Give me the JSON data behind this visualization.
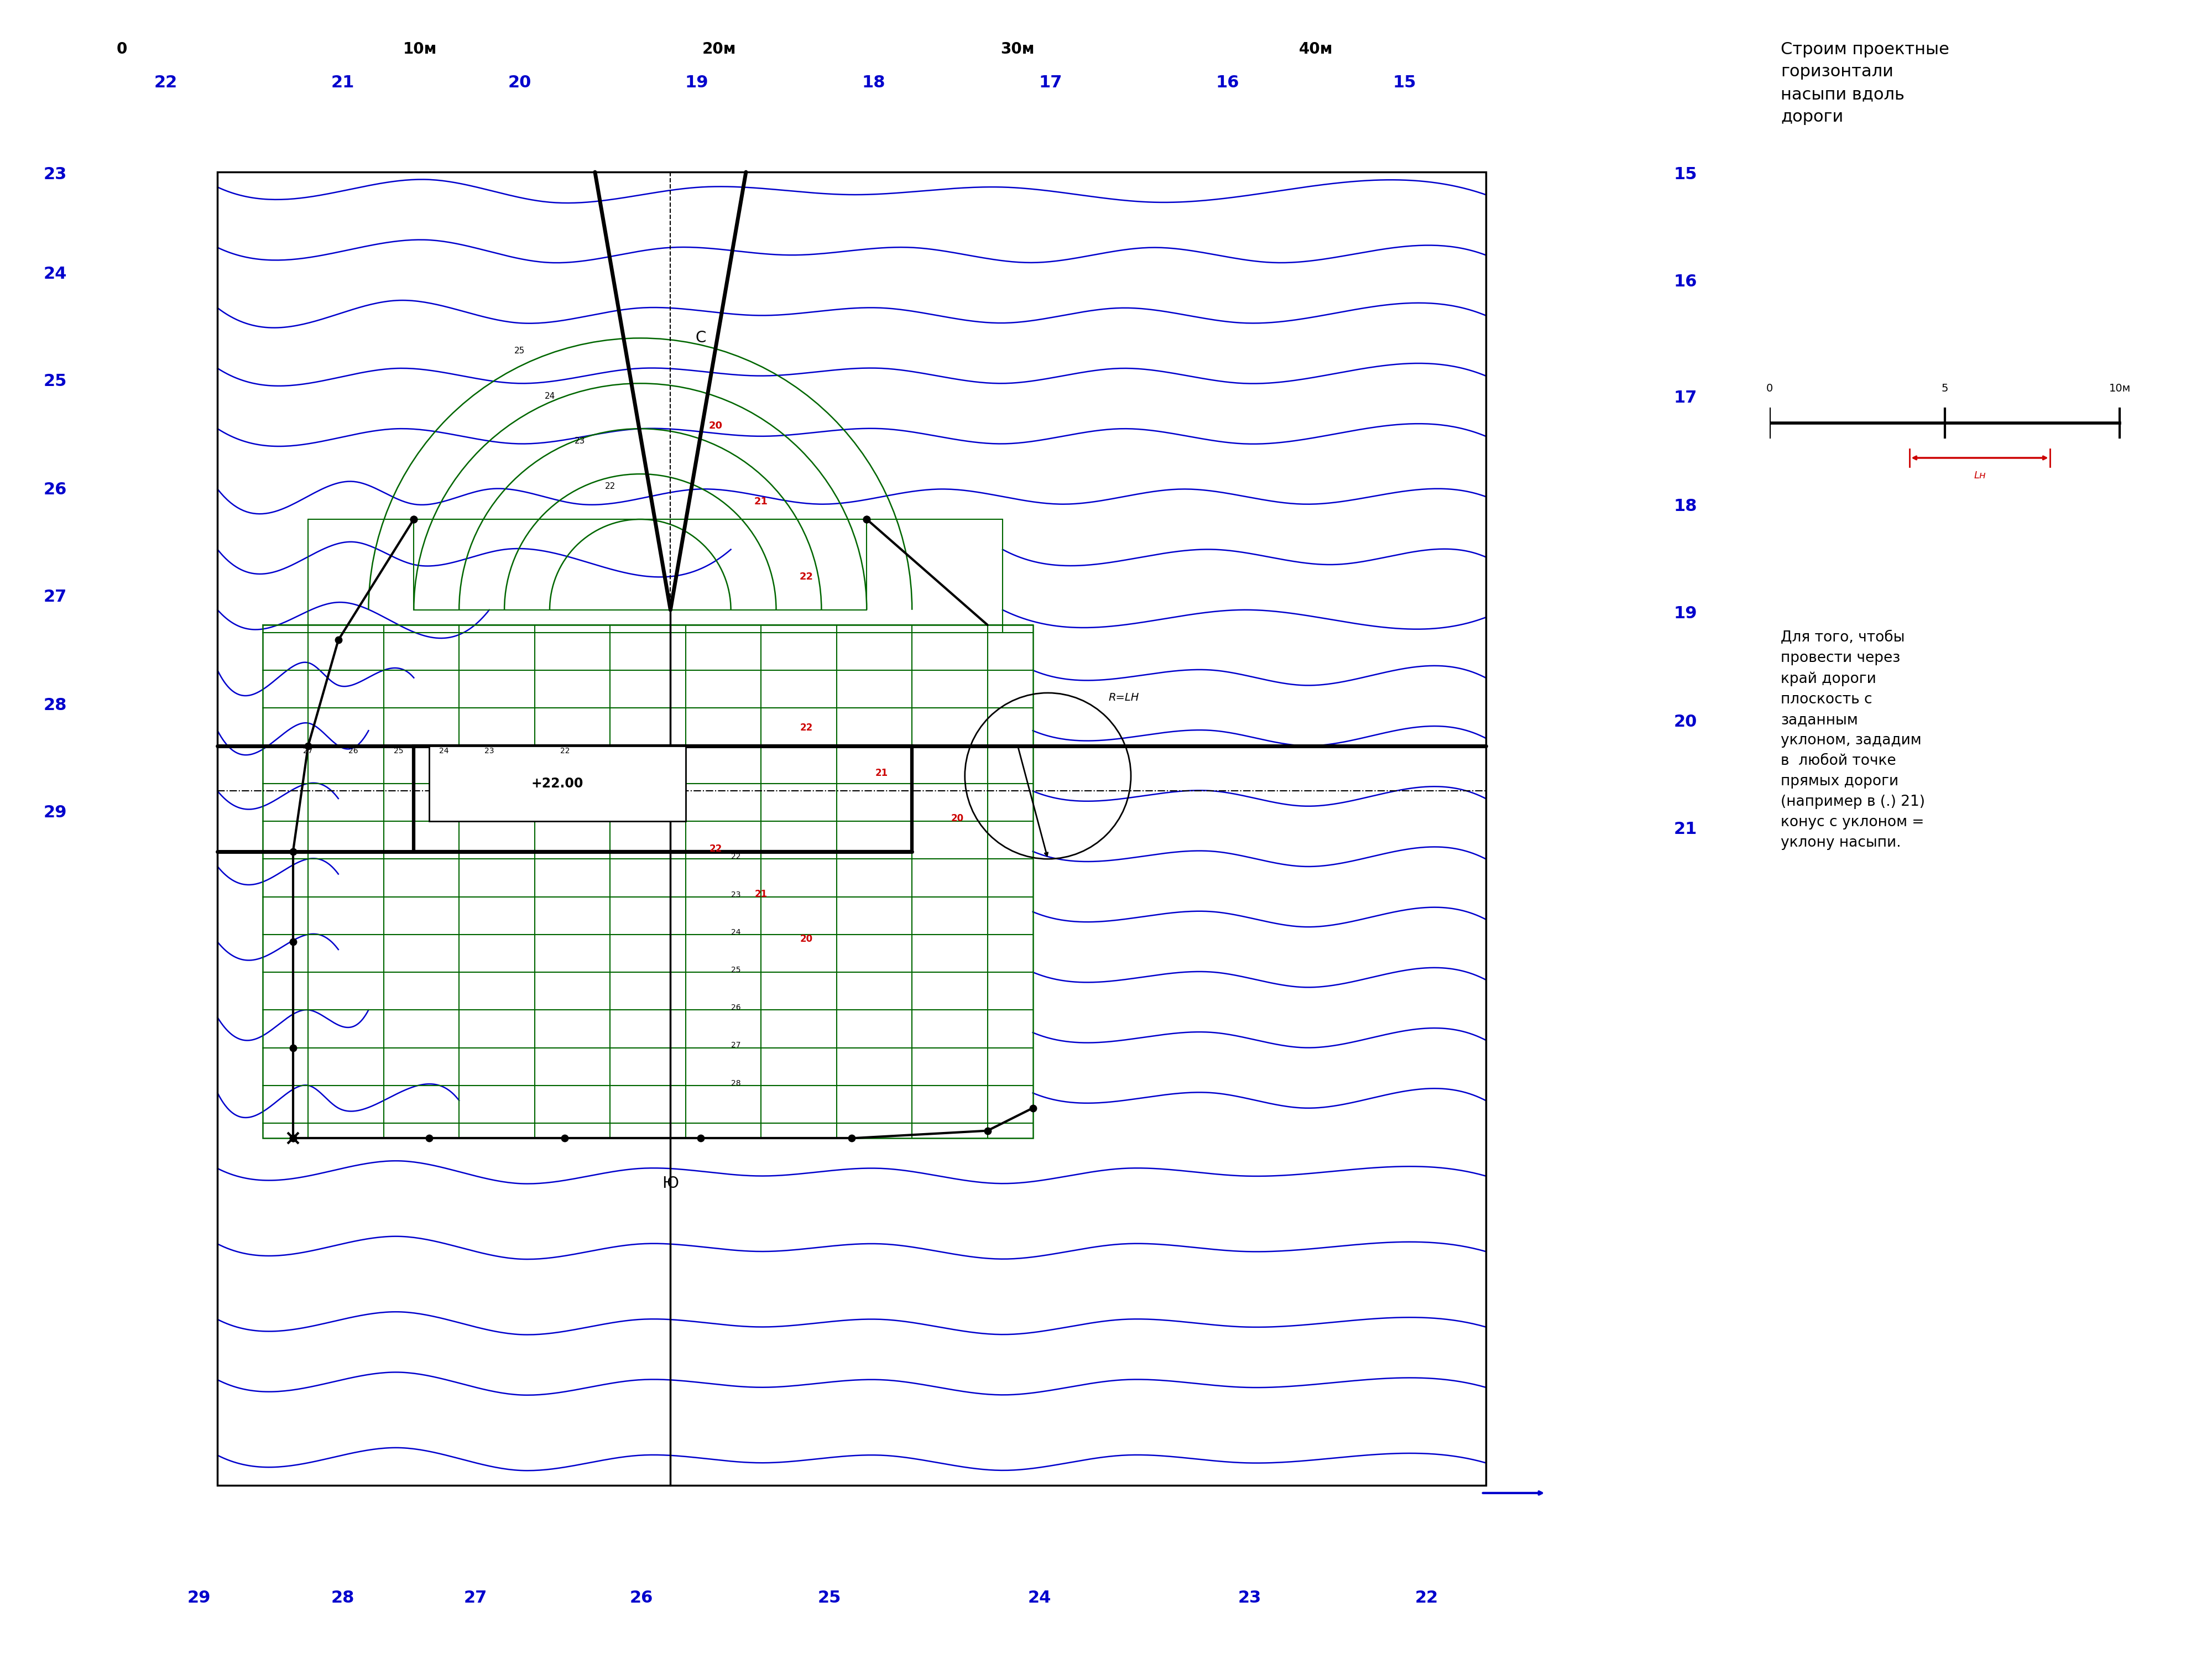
{
  "title_text": "Строим проектные\nгоризонтали\nнасыпи вдоль\nдороги",
  "side_text": "Для того, чтобы\nпровести через\nкрай дороги\nплоскость с\nзаданным\nуклоном, зададим\nв  любой точке\nпрямых дороги\n(например в (.) 21)\nконус с уклоном =\nуклону насыпи.",
  "bg_color": "#ffffff",
  "blue_color": "#0000cc",
  "green_color": "#006600",
  "red_color": "#cc0000",
  "black_color": "#000000",
  "top_scale": [
    [
      "0",
      0.055
    ],
    [
      "10м",
      0.19
    ],
    [
      "20м",
      0.325
    ],
    [
      "30м",
      0.46
    ],
    [
      "40м",
      0.595
    ]
  ],
  "top_blue": [
    [
      "22",
      0.075
    ],
    [
      "21",
      0.155
    ],
    [
      "20",
      0.235
    ],
    [
      "19",
      0.315
    ],
    [
      "18",
      0.395
    ],
    [
      "17",
      0.475
    ],
    [
      "16",
      0.555
    ],
    [
      "15",
      0.635
    ]
  ],
  "left_blue": [
    [
      "23",
      0.895
    ],
    [
      "24",
      0.835
    ],
    [
      "25",
      0.77
    ],
    [
      "26",
      0.705
    ],
    [
      "27",
      0.64
    ],
    [
      "28",
      0.575
    ],
    [
      "29",
      0.51
    ]
  ],
  "right_blue": [
    [
      "15",
      0.895
    ],
    [
      "16",
      0.83
    ],
    [
      "17",
      0.76
    ],
    [
      "18",
      0.695
    ],
    [
      "19",
      0.63
    ],
    [
      "20",
      0.565
    ],
    [
      "21",
      0.5
    ]
  ],
  "bottom_blue": [
    [
      "29",
      0.09
    ],
    [
      "28",
      0.155
    ],
    [
      "27",
      0.215
    ],
    [
      "26",
      0.29
    ],
    [
      "25",
      0.375
    ],
    [
      "24",
      0.47
    ],
    [
      "23",
      0.565
    ],
    [
      "22",
      0.645
    ]
  ]
}
